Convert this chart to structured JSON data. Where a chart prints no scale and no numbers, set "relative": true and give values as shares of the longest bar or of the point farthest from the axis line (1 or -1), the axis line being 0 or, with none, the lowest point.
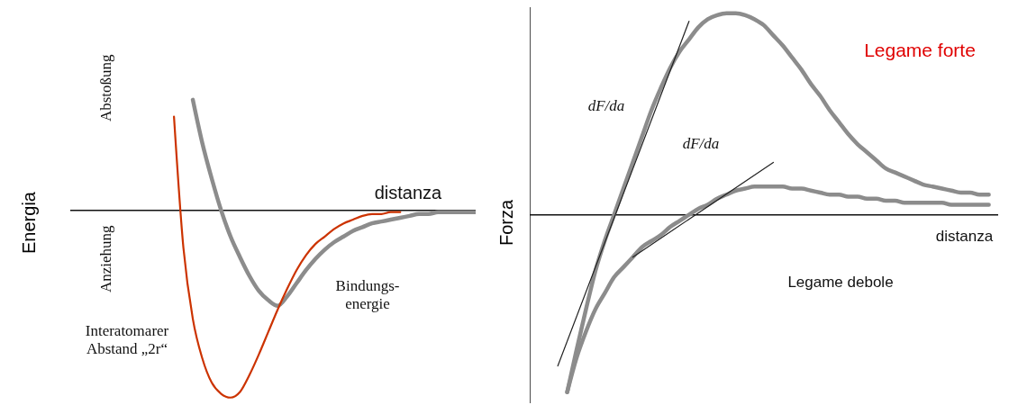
{
  "chart_data": [
    {
      "type": "line",
      "relative": true,
      "ylabel": "Energia",
      "marker": "none",
      "categories": [
        null,
        null,
        null,
        null,
        null,
        null,
        null,
        null,
        null,
        null,
        null,
        null,
        null,
        null,
        null,
        null,
        null,
        null,
        null,
        null,
        null,
        null,
        null,
        null,
        null,
        null,
        null,
        null,
        null,
        null,
        null,
        null,
        null,
        null,
        null,
        null,
        null,
        null,
        null,
        null,
        null,
        null,
        null,
        null
      ],
      "series": [
        {
          "color": "#8c8c8c",
          "values": [
            null,
            null,
            null,
            null,
            null,
            null,
            null,
            null,
            null,
            null,
            null,
            null,
            null,
            0.59,
            0.36,
            0.17,
            0,
            -0.14,
            -0.25,
            -0.35,
            -0.43,
            -0.48,
            -0.51,
            -0.46,
            -0.39,
            -0.32,
            -0.26,
            -0.21,
            -0.17,
            -0.14,
            -0.11,
            -0.09,
            -0.07,
            -0.06,
            -0.05,
            -0.04,
            -0.03,
            -0.02,
            -0.02,
            -0.01,
            -0.01,
            -0.01,
            -0.01,
            -0.01
          ]
        },
        {
          "color": "#cc3300",
          "values": [
            null,
            null,
            null,
            null,
            null,
            null,
            null,
            null,
            null,
            null,
            null,
            0.5,
            -0.2,
            -0.58,
            -0.79,
            -0.92,
            -0.98,
            -1,
            -0.97,
            -0.88,
            -0.77,
            -0.65,
            -0.53,
            -0.42,
            -0.32,
            -0.24,
            -0.18,
            -0.14,
            -0.1,
            -0.07,
            -0.05,
            -0.03,
            -0.02,
            -0.02,
            -0.01,
            -0.01,
            null,
            null,
            null,
            null,
            null,
            null,
            null,
            null
          ]
        }
      ],
      "annotations": [
        "Abstoßung",
        "Anziehung",
        "distanza",
        "Bindungs-energie",
        "Interatomarer Abstand „2r“"
      ]
    },
    {
      "type": "line",
      "relative": true,
      "ylabel": "Forza",
      "marker": "none",
      "categories": [
        null,
        null,
        null,
        null,
        null,
        null,
        null,
        null,
        null,
        null,
        null,
        null,
        null,
        null,
        null,
        null,
        null,
        null,
        null,
        null,
        null,
        null,
        null,
        null,
        null,
        null,
        null,
        null,
        null,
        null,
        null,
        null,
        null,
        null,
        null,
        null,
        null,
        null,
        null,
        null,
        null,
        null,
        null,
        null,
        null,
        null,
        null,
        null,
        null,
        null,
        null
      ],
      "series": [
        {
          "color": "#8c8c8c",
          "values": [
            null,
            null,
            null,
            null,
            -0.88,
            -0.67,
            -0.47,
            -0.28,
            -0.13,
            0,
            0.13,
            0.26,
            0.39,
            0.52,
            0.63,
            0.73,
            0.81,
            0.87,
            0.93,
            0.97,
            0.99,
            1,
            1,
            0.99,
            0.97,
            0.94,
            0.89,
            0.84,
            0.78,
            0.72,
            0.65,
            0.59,
            0.52,
            0.46,
            0.4,
            0.35,
            0.31,
            0.27,
            0.23,
            0.21,
            0.19,
            0.17,
            0.15,
            0.14,
            0.13,
            0.12,
            0.11,
            0.11,
            0.1,
            0.1,
            null
          ]
        },
        {
          "color": "#8c8c8c",
          "values": [
            null,
            null,
            null,
            null,
            -0.88,
            -0.71,
            -0.58,
            -0.47,
            -0.39,
            -0.31,
            -0.26,
            -0.21,
            -0.16,
            -0.13,
            -0.1,
            -0.06,
            -0.03,
            0,
            0.03,
            0.05,
            0.08,
            0.1,
            0.12,
            0.13,
            0.14,
            0.14,
            0.14,
            0.14,
            0.13,
            0.13,
            0.12,
            0.11,
            0.1,
            0.1,
            0.09,
            0.09,
            0.08,
            0.08,
            0.07,
            0.07,
            0.06,
            0.06,
            0.06,
            0.06,
            0.06,
            0.05,
            0.05,
            0.05,
            0.05,
            0.05,
            null
          ]
        },
        {
          "color": "#222222",
          "values": [
            null,
            null,
            null,
            -0.75,
            null,
            null,
            null,
            null,
            null,
            null,
            null,
            null,
            null,
            null,
            null,
            null,
            null,
            0.96,
            null,
            null,
            null,
            null,
            null,
            null,
            null,
            null,
            null,
            null,
            null,
            null,
            null,
            null,
            null,
            null,
            null,
            null,
            null,
            null,
            null,
            null,
            null,
            null,
            null,
            null,
            null,
            null,
            null,
            null,
            null,
            null,
            null
          ]
        },
        {
          "color": "#222222",
          "values": [
            null,
            null,
            null,
            null,
            null,
            null,
            null,
            null,
            null,
            null,
            null,
            -0.21,
            null,
            null,
            null,
            null,
            null,
            null,
            null,
            null,
            null,
            null,
            null,
            null,
            null,
            null,
            0.26,
            null,
            null,
            null,
            null,
            null,
            null,
            null,
            null,
            null,
            null,
            null,
            null,
            null,
            null,
            null,
            null,
            null,
            null,
            null,
            null,
            null,
            null,
            null,
            null
          ]
        }
      ],
      "annotations": [
        "dF/da",
        "dF/da",
        "Legame forte",
        "Legame debole",
        "distanza"
      ]
    }
  ]
}
